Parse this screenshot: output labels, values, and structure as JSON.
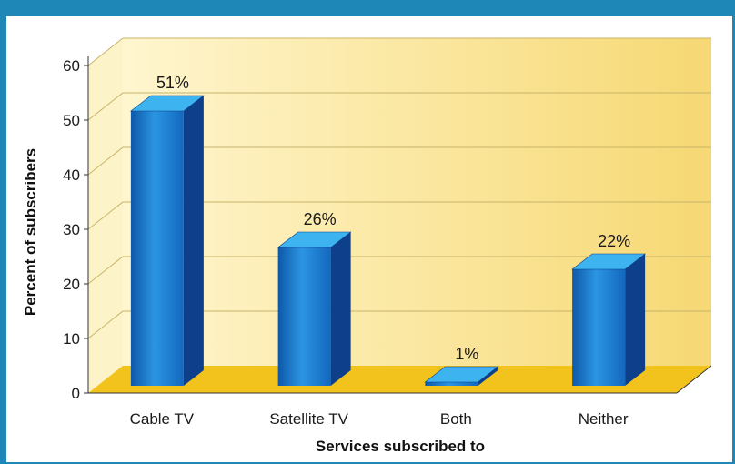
{
  "chart_data": {
    "type": "bar",
    "categories": [
      "Cable TV",
      "Satellite TV",
      "Both",
      "Neither"
    ],
    "values": [
      51,
      26,
      1,
      22
    ],
    "data_labels": [
      "51%",
      "26%",
      "1%",
      "22%"
    ],
    "xlabel": "Services subscribed to",
    "ylabel": "Percent of subscribers",
    "ylim": [
      0,
      60
    ],
    "yticks": [
      "0",
      "10",
      "20",
      "30",
      "40",
      "50",
      "60"
    ],
    "grid": true,
    "three_d": true,
    "colors": {
      "bar_front": "#1d7fcc",
      "bar_side": "#0d3f8a",
      "bar_top": "#3db4f0",
      "floor": "#f2c31c",
      "back_wall": "#fbe9a8",
      "gridline": "#c7b46a"
    }
  }
}
